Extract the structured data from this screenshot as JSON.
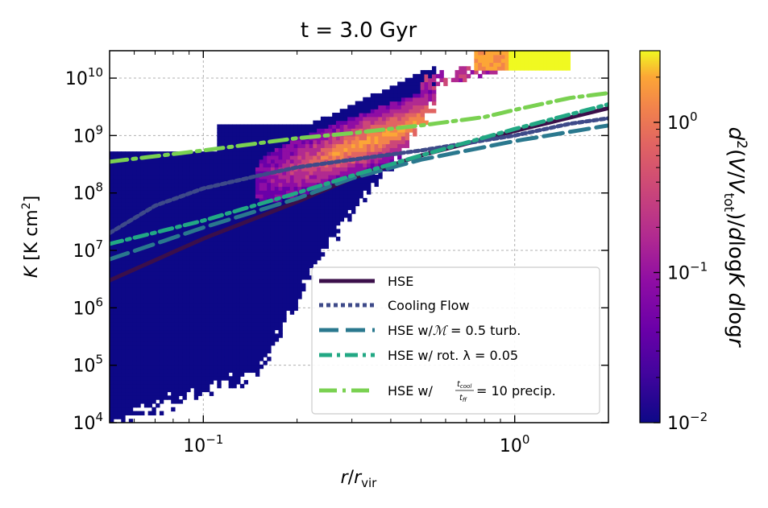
{
  "chart_data": {
    "type": "heatmap",
    "title": "t = 3.0 Gyr",
    "xlabel": "r/r_vir",
    "ylabel": "K [K cm^2]",
    "xscale": "log",
    "yscale": "log",
    "xlim": [
      0.05,
      2.0
    ],
    "ylim": [
      10000,
      30000000000
    ],
    "grid": true,
    "x_ticks": [
      {
        "value": 0.1,
        "base": "10",
        "exp": "−1"
      },
      {
        "value": 1.0,
        "base": "10",
        "exp": "0"
      }
    ],
    "y_ticks": [
      {
        "value": 10000,
        "base": "10",
        "exp": "4"
      },
      {
        "value": 100000,
        "base": "10",
        "exp": "5"
      },
      {
        "value": 1000000,
        "base": "10",
        "exp": "6"
      },
      {
        "value": 10000000,
        "base": "10",
        "exp": "7"
      },
      {
        "value": 100000000,
        "base": "10",
        "exp": "8"
      },
      {
        "value": 1000000000,
        "base": "10",
        "exp": "9"
      },
      {
        "value": 10000000000,
        "base": "10",
        "exp": "10"
      }
    ],
    "colorbar": {
      "label": "d^2(V/V_tot)/dlogK dlogr",
      "scale": "log",
      "range": [
        0.01,
        3.0
      ],
      "colormap": "plasma",
      "ticks": [
        {
          "value": 0.01,
          "base": "10",
          "exp": "−2"
        },
        {
          "value": 0.1,
          "base": "10",
          "exp": "−1"
        },
        {
          "value": 1.0,
          "base": "10",
          "exp": "0"
        }
      ]
    },
    "legend_position": "lower-right",
    "series": [
      {
        "name": "HSE",
        "color": "#3b0f4a",
        "style": "solid",
        "x": [
          0.05,
          0.1,
          0.2,
          0.3,
          0.5,
          1.0,
          2.0
        ],
        "y": [
          3000000,
          16000000,
          70000000,
          180000000,
          450000000,
          1200000000,
          3000000000
        ]
      },
      {
        "name": "Cooling Flow",
        "color": "#3e4a89",
        "style": "dotted",
        "x": [
          0.05,
          0.07,
          0.1,
          0.15,
          0.2,
          0.3,
          0.5,
          1.0,
          1.5,
          2.0
        ],
        "y": [
          20000000,
          60000000,
          120000000,
          200000000,
          280000000,
          380000000,
          550000000,
          1000000000,
          1600000000,
          2000000000
        ]
      },
      {
        "name": "HSE w/M = 0.5 turb.",
        "color": "#2a788e",
        "style": "dashed",
        "x": [
          0.05,
          0.1,
          0.2,
          0.3,
          0.5,
          1.0,
          2.0
        ],
        "y": [
          7000000,
          25000000,
          80000000,
          180000000,
          380000000,
          800000000,
          1500000000
        ]
      },
      {
        "name": "HSE w/ rot. λ = 0.05",
        "color": "#22a884",
        "style": "dashdot",
        "x": [
          0.05,
          0.1,
          0.2,
          0.3,
          0.5,
          1.0,
          2.0
        ],
        "y": [
          13000000,
          33000000,
          100000000,
          200000000,
          450000000,
          1300000000,
          3500000000
        ]
      },
      {
        "name": "HSE w/ t_cool/t_ff = 10 precip.",
        "color": "#7ad151",
        "style": "dashdot",
        "x": [
          0.05,
          0.1,
          0.2,
          0.3,
          0.5,
          0.8,
          1.0,
          1.5,
          2.0
        ],
        "y": [
          350000000,
          550000000,
          900000000,
          1100000000,
          1500000000,
          2100000000,
          2800000000,
          4500000000,
          5500000000
        ]
      }
    ],
    "legend_labels": {
      "hse": "HSE",
      "cooling": "Cooling Flow",
      "turb_prefix": "HSE w/",
      "turb_symbol": "ℳ",
      "turb_suffix": " = 0.5 turb.",
      "rot": "HSE w/ rot. λ = 0.05",
      "precip_prefix": "HSE w/",
      "precip_num": "t",
      "precip_num_sub": "cool",
      "precip_den": "t",
      "precip_den_sub": "ff",
      "precip_suffix": " = 10 precip."
    },
    "heatmap_regions": {
      "dense_band": {
        "x": [
          0.18,
          0.25,
          0.35,
          0.45,
          0.55
        ],
        "y": [
          500000000,
          1000000000,
          2000000000,
          3500000000,
          6000000000
        ]
      },
      "high_tail": {
        "x": [
          0.9,
          1.1,
          1.3,
          1.5
        ],
        "y": [
          25000000000,
          28000000000,
          30000000000,
          30000000000
        ]
      }
    }
  }
}
